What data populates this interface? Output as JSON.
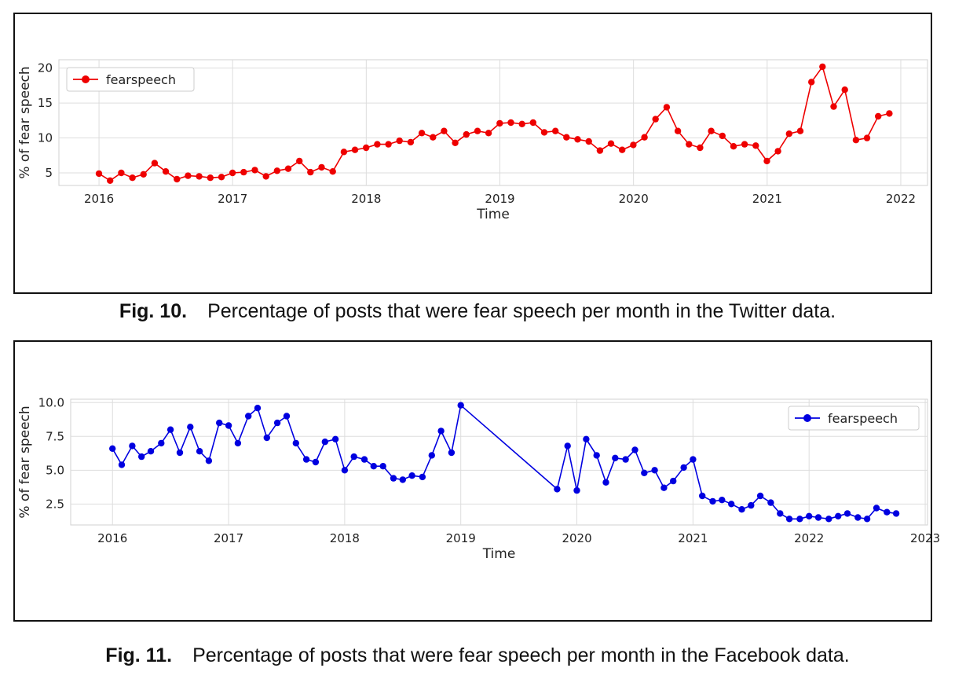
{
  "chart_data": [
    {
      "type": "line",
      "figure_label": "Fig. 10.",
      "caption": "Percentage of posts that were fear speech per month in the Twitter data.",
      "xlabel": "Time",
      "ylabel": "% of fear speech",
      "xlim": [
        2015.7,
        2022.2
      ],
      "ylim": [
        3.2,
        21.2
      ],
      "xticks": [
        2016,
        2017,
        2018,
        2019,
        2020,
        2021,
        2022
      ],
      "xtick_labels": [
        "2016",
        "2017",
        "2018",
        "2019",
        "2020",
        "2021",
        "2022"
      ],
      "yticks": [
        5,
        10,
        15,
        20
      ],
      "ytick_labels": [
        "5",
        "10",
        "15",
        "20"
      ],
      "legend": {
        "position": "top-left",
        "entries": [
          "fearspeech"
        ]
      },
      "grid": true,
      "series": [
        {
          "name": "fearspeech",
          "color": "#ee0000",
          "x_start": 2016.0,
          "x_step": 0.0833,
          "values": [
            4.9,
            3.9,
            5.0,
            4.3,
            4.8,
            6.4,
            5.2,
            4.1,
            4.6,
            4.5,
            4.3,
            4.4,
            5.0,
            5.1,
            5.4,
            4.5,
            5.3,
            5.6,
            6.7,
            5.1,
            5.8,
            5.2,
            8.0,
            8.3,
            8.6,
            9.1,
            9.1,
            9.6,
            9.4,
            10.7,
            10.1,
            11.0,
            9.3,
            10.5,
            11.0,
            10.7,
            12.1,
            12.2,
            12.0,
            12.2,
            10.8,
            11.0,
            10.1,
            9.8,
            9.5,
            8.2,
            9.2,
            8.3,
            9.0,
            10.1,
            12.7,
            14.4,
            11.0,
            9.1,
            8.6,
            11.0,
            10.3,
            8.8,
            9.1,
            8.9,
            6.7,
            8.1,
            10.6,
            11.0,
            18.0,
            20.2,
            14.5,
            16.9,
            9.7,
            10.0,
            13.1,
            13.5
          ]
        }
      ]
    },
    {
      "type": "line",
      "figure_label": "Fig. 11.",
      "caption": "Percentage of posts that were fear speech per month in the Facebook data.",
      "xlabel": "Time",
      "ylabel": "% of fear speech",
      "xlim": [
        2015.64,
        2023.02
      ],
      "ylim": [
        0.95,
        10.25
      ],
      "xticks": [
        2016,
        2017,
        2018,
        2019,
        2020,
        2021,
        2022,
        2023
      ],
      "xtick_labels": [
        "2016",
        "2017",
        "2018",
        "2019",
        "2020",
        "2021",
        "2022",
        "2023"
      ],
      "yticks": [
        2.5,
        5.0,
        7.5,
        10.0
      ],
      "ytick_labels": [
        "2.5",
        "5.0",
        "7.5",
        "10.0"
      ],
      "legend": {
        "position": "top-right",
        "entries": [
          "fearspeech"
        ]
      },
      "grid": true,
      "series": [
        {
          "name": "fearspeech",
          "color": "#0000e0",
          "x": [
            2016.0,
            2016.08,
            2016.17,
            2016.25,
            2016.33,
            2016.42,
            2016.5,
            2016.58,
            2016.67,
            2016.75,
            2016.83,
            2016.92,
            2017.0,
            2017.08,
            2017.17,
            2017.25,
            2017.33,
            2017.42,
            2017.5,
            2017.58,
            2017.67,
            2017.75,
            2017.83,
            2017.92,
            2018.0,
            2018.08,
            2018.17,
            2018.25,
            2018.33,
            2018.42,
            2018.5,
            2018.58,
            2018.67,
            2018.75,
            2018.83,
            2018.92,
            2019.0,
            2019.83,
            2019.92,
            2020.0,
            2020.08,
            2020.17,
            2020.25,
            2020.33,
            2020.42,
            2020.5,
            2020.58,
            2020.67,
            2020.75,
            2020.83,
            2020.92,
            2021.0,
            2021.08,
            2021.17,
            2021.25,
            2021.33,
            2021.42,
            2021.5,
            2021.58,
            2021.67,
            2021.75,
            2021.83,
            2021.92,
            2022.0,
            2022.08,
            2022.17,
            2022.25,
            2022.33,
            2022.42,
            2022.5,
            2022.58,
            2022.67,
            2022.75
          ],
          "values": [
            6.6,
            5.4,
            6.8,
            6.0,
            6.4,
            7.0,
            8.0,
            6.3,
            8.2,
            6.4,
            5.7,
            8.5,
            8.3,
            7.0,
            9.0,
            9.6,
            7.4,
            8.5,
            9.0,
            7.0,
            5.8,
            5.6,
            7.1,
            7.3,
            5.0,
            6.0,
            5.8,
            5.3,
            5.3,
            4.4,
            4.3,
            4.6,
            4.5,
            6.1,
            7.9,
            6.3,
            9.8,
            3.6,
            6.8,
            3.5,
            7.3,
            6.1,
            4.1,
            5.9,
            5.8,
            6.5,
            4.8,
            5.0,
            3.7,
            4.2,
            5.2,
            5.8,
            3.1,
            2.7,
            2.8,
            2.5,
            2.1,
            2.4,
            3.1,
            2.6,
            1.8,
            1.4,
            1.4,
            1.6,
            1.5,
            1.4,
            1.6,
            1.8,
            1.5,
            1.4,
            2.2,
            1.9,
            1.8
          ]
        }
      ]
    }
  ]
}
